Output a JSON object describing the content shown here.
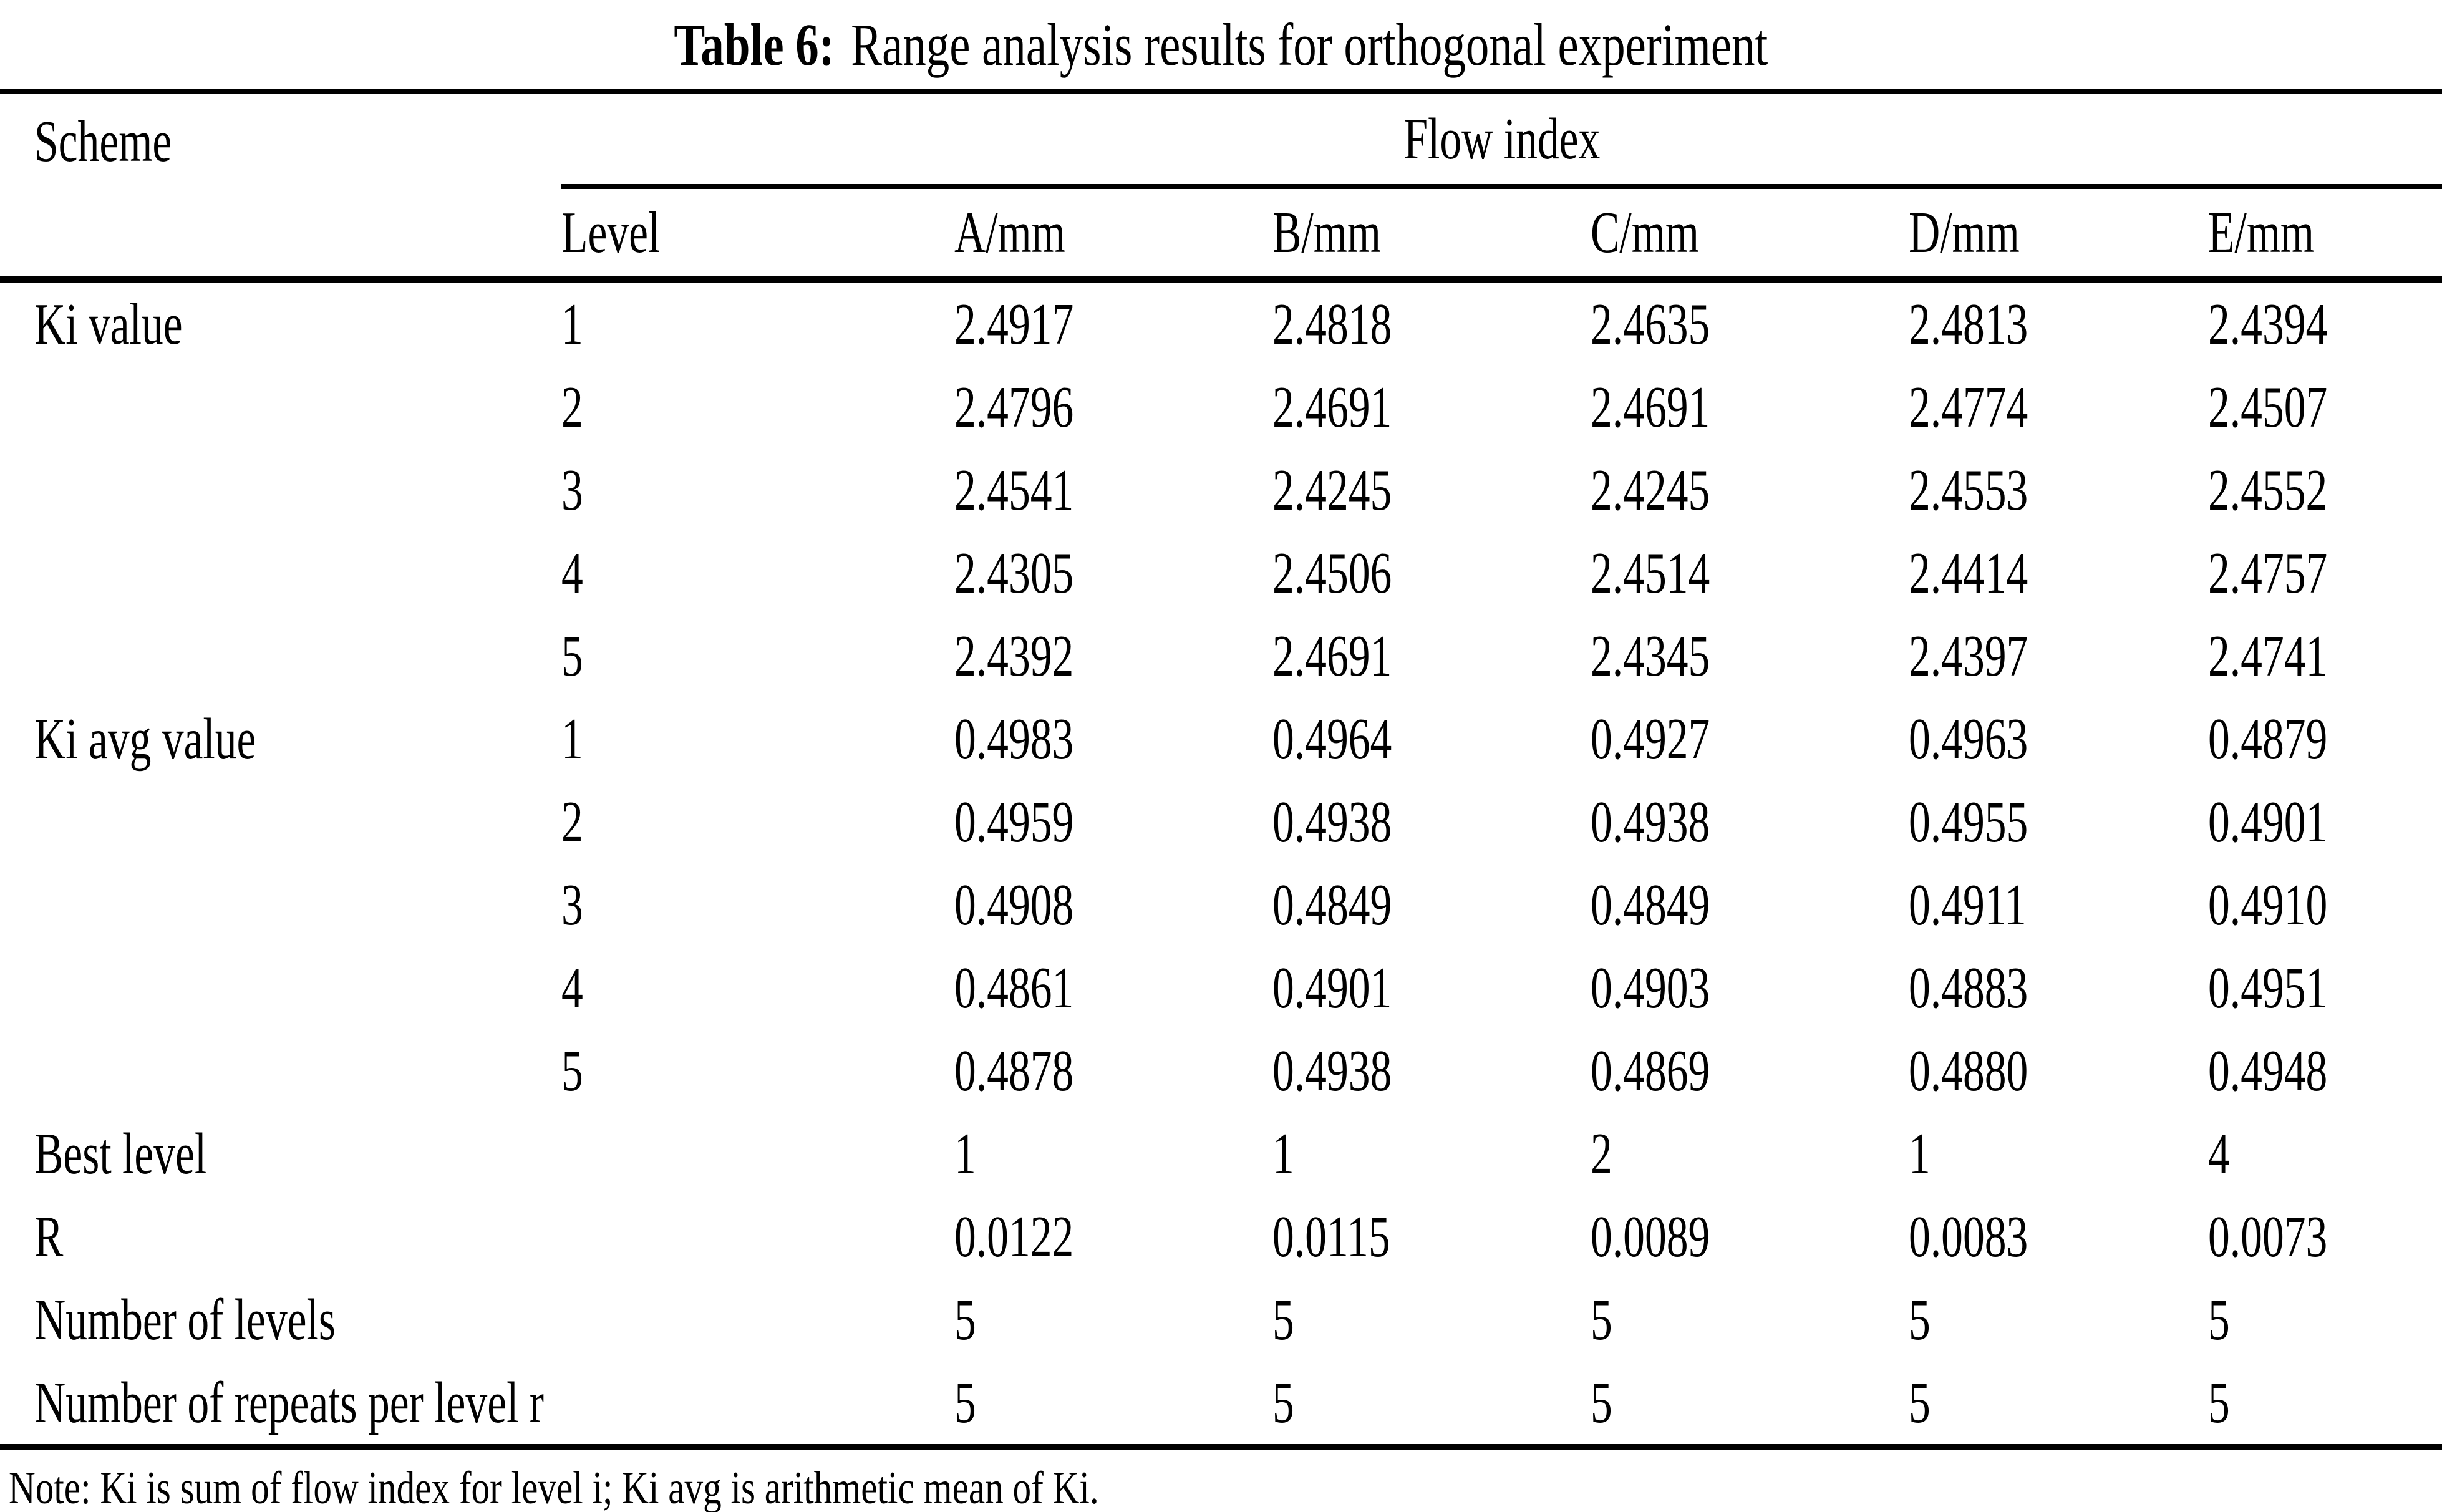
{
  "title": {
    "label": "Table 6:",
    "caption": "Range analysis results for orthogonal experiment"
  },
  "table": {
    "scheme_header": "Scheme",
    "group_header": "Flow index",
    "columns": [
      "Level",
      "A/mm",
      "B/mm",
      "C/mm",
      "D/mm",
      "E/mm"
    ],
    "rows": [
      {
        "scheme": "Ki value",
        "level": "1",
        "values": [
          "2.4917",
          "2.4818",
          "2.4635",
          "2.4813",
          "2.4394"
        ]
      },
      {
        "scheme": "",
        "level": "2",
        "values": [
          "2.4796",
          "2.4691",
          "2.4691",
          "2.4774",
          "2.4507"
        ]
      },
      {
        "scheme": "",
        "level": "3",
        "values": [
          "2.4541",
          "2.4245",
          "2.4245",
          "2.4553",
          "2.4552"
        ]
      },
      {
        "scheme": "",
        "level": "4",
        "values": [
          "2.4305",
          "2.4506",
          "2.4514",
          "2.4414",
          "2.4757"
        ]
      },
      {
        "scheme": "",
        "level": "5",
        "values": [
          "2.4392",
          "2.4691",
          "2.4345",
          "2.4397",
          "2.4741"
        ]
      },
      {
        "scheme": "Ki avg value",
        "level": "1",
        "values": [
          "0.4983",
          "0.4964",
          "0.4927",
          "0.4963",
          "0.4879"
        ]
      },
      {
        "scheme": "",
        "level": "2",
        "values": [
          "0.4959",
          "0.4938",
          "0.4938",
          "0.4955",
          "0.4901"
        ]
      },
      {
        "scheme": "",
        "level": "3",
        "values": [
          "0.4908",
          "0.4849",
          "0.4849",
          "0.4911",
          "0.4910"
        ]
      },
      {
        "scheme": "",
        "level": "4",
        "values": [
          "0.4861",
          "0.4901",
          "0.4903",
          "0.4883",
          "0.4951"
        ]
      },
      {
        "scheme": "",
        "level": "5",
        "values": [
          "0.4878",
          "0.4938",
          "0.4869",
          "0.4880",
          "0.4948"
        ]
      },
      {
        "scheme": "Best level",
        "level": "",
        "values": [
          "1",
          "1",
          "2",
          "1",
          "4"
        ]
      },
      {
        "scheme": "R",
        "level": "",
        "values": [
          "0.0122",
          "0.0115",
          "0.0089",
          "0.0083",
          "0.0073"
        ]
      },
      {
        "scheme": "Number of levels",
        "level": "",
        "values": [
          "5",
          "5",
          "5",
          "5",
          "5"
        ]
      },
      {
        "scheme": "Number of repeats per level r",
        "level": "",
        "values": [
          "5",
          "5",
          "5",
          "5",
          "5"
        ]
      }
    ],
    "note": "Note: Ki is sum of flow index for level i; Ki avg is arithmetic mean of Ki."
  }
}
